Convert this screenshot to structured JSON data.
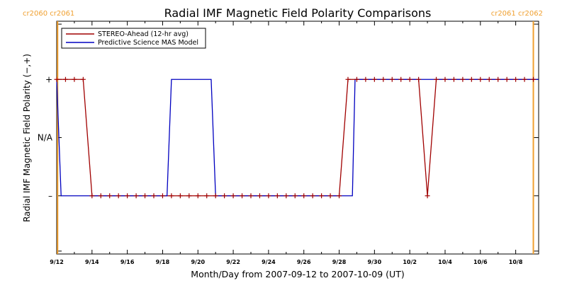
{
  "chart_data": {
    "type": "line",
    "title": "Radial IMF Magnetic Field Polarity Comparisons",
    "xlabel": "Month/Day from 2007-09-12 to 2007-10-09 (UT)",
    "ylabel": "Radial IMF Magnetic Field Polarity (−,+)",
    "x_range_days": [
      0,
      27.3
    ],
    "xtick_values": [
      0,
      2,
      4,
      6,
      8,
      10,
      12,
      14,
      16,
      18,
      20,
      22,
      24,
      26
    ],
    "xtick_labels": [
      "9/12",
      "9/14",
      "9/16",
      "9/18",
      "9/20",
      "9/22",
      "9/24",
      "9/26",
      "9/28",
      "9/30",
      "10/2",
      "10/4",
      "10/6",
      "10/8"
    ],
    "y_range": [
      -2,
      2
    ],
    "ytick_values": [
      1,
      0,
      -1
    ],
    "ytick_labels": [
      "+",
      "N/A",
      "–"
    ],
    "grid": false,
    "legend_position": "top-left",
    "legend": [
      {
        "name": "STEREO-Ahead (12-hr avg)",
        "color": "#a00000"
      },
      {
        "name": "Predictive Science MAS Model",
        "color": "#0000c0"
      }
    ],
    "carrington_markers": [
      {
        "x": 0.05,
        "left_label": "cr2060",
        "right_label": "cr2061",
        "color": "#f0a030"
      },
      {
        "x": 27.0,
        "left_label": "cr2061",
        "right_label": "cr2062",
        "color": "#f0a030"
      }
    ],
    "series": [
      {
        "name": "STEREO-Ahead (12-hr avg)",
        "color": "#a00000",
        "marker": "+",
        "points": [
          [
            0,
            1
          ],
          [
            0.5,
            1
          ],
          [
            1.0,
            1
          ],
          [
            1.5,
            1
          ],
          [
            2.0,
            -1
          ],
          [
            2.5,
            -1
          ],
          [
            3.0,
            -1
          ],
          [
            3.5,
            -1
          ],
          [
            4.0,
            -1
          ],
          [
            4.5,
            -1
          ],
          [
            5.0,
            -1
          ],
          [
            5.5,
            -1
          ],
          [
            6.0,
            -1
          ],
          [
            6.5,
            -1
          ],
          [
            7.0,
            -1
          ],
          [
            7.5,
            -1
          ],
          [
            8.0,
            -1
          ],
          [
            8.5,
            -1
          ],
          [
            9.0,
            -1
          ],
          [
            9.5,
            -1
          ],
          [
            10.0,
            -1
          ],
          [
            10.5,
            -1
          ],
          [
            11.0,
            -1
          ],
          [
            11.5,
            -1
          ],
          [
            12.0,
            -1
          ],
          [
            12.5,
            -1
          ],
          [
            13.0,
            -1
          ],
          [
            13.5,
            -1
          ],
          [
            14.0,
            -1
          ],
          [
            14.5,
            -1
          ],
          [
            15.0,
            -1
          ],
          [
            15.5,
            -1
          ],
          [
            16.0,
            -1
          ],
          [
            16.5,
            1
          ],
          [
            17.0,
            1
          ],
          [
            17.5,
            1
          ],
          [
            18.0,
            1
          ],
          [
            18.5,
            1
          ],
          [
            19.0,
            1
          ],
          [
            19.5,
            1
          ],
          [
            20.0,
            1
          ],
          [
            20.5,
            1
          ],
          [
            21.0,
            -1
          ],
          [
            21.5,
            1
          ],
          [
            22.0,
            1
          ],
          [
            22.5,
            1
          ],
          [
            23.0,
            1
          ],
          [
            23.5,
            1
          ],
          [
            24.0,
            1
          ],
          [
            24.5,
            1
          ],
          [
            25.0,
            1
          ],
          [
            25.5,
            1
          ],
          [
            26.0,
            1
          ],
          [
            26.5,
            1
          ],
          [
            27.0,
            1
          ]
        ]
      },
      {
        "name": "Predictive Science MAS Model",
        "color": "#0000c0",
        "points": [
          [
            0,
            1
          ],
          [
            0.25,
            -1
          ],
          [
            6.25,
            -1
          ],
          [
            6.5,
            1
          ],
          [
            8.75,
            1
          ],
          [
            9.0,
            -1
          ],
          [
            16.75,
            -1
          ],
          [
            16.9,
            1
          ],
          [
            27.3,
            1
          ]
        ]
      }
    ]
  }
}
